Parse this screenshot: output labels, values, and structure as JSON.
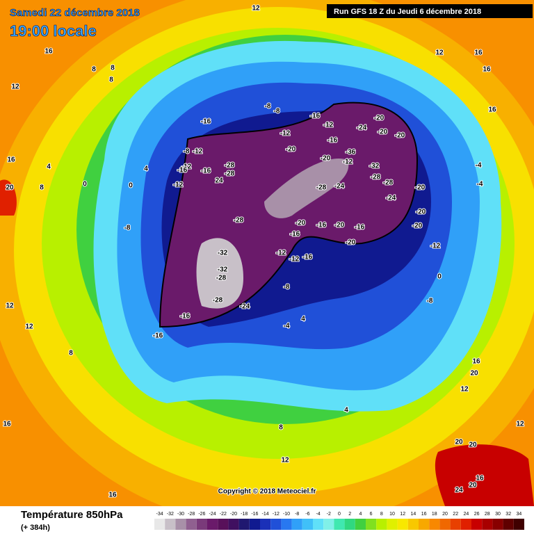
{
  "header": {
    "date": "Samedi 22 décembre 2018",
    "time": "19:00 locale",
    "run": "Run GFS 18 Z du Jeudi 6 décembre 2018"
  },
  "map": {
    "copyright": "Copyright © 2018 Meteociel.fr",
    "labels": [
      12,
      16,
      8,
      8,
      8,
      12,
      16,
      20,
      4,
      8,
      0,
      0,
      4,
      -8,
      -12,
      -16,
      -12,
      -16,
      -16,
      -28,
      -28,
      24,
      -12,
      -8,
      -8,
      -16,
      -12,
      -12,
      -20,
      -16,
      -36,
      -20,
      -12,
      -32,
      -20,
      -24,
      -20,
      -20,
      -28,
      -28,
      -24,
      -28,
      -24,
      -20,
      -20,
      -20,
      -28,
      -20,
      -16,
      -20,
      -16,
      -20,
      -16,
      -12,
      -12,
      -16,
      -32,
      -32,
      -28,
      -24,
      -28,
      -16,
      -16,
      -8,
      -8,
      -4,
      4,
      -12,
      -8,
      -4,
      -4,
      0,
      8,
      12,
      12,
      16,
      16,
      12,
      8,
      4,
      20,
      20,
      24,
      20,
      16,
      12,
      16,
      20,
      16,
      16,
      16,
      12,
      12
    ]
  },
  "legend": {
    "title": "Température 850hPa",
    "lead": "(+ 384h)",
    "scale": [
      {
        "value": -34,
        "color": "#e8e8e8"
      },
      {
        "value": -32,
        "color": "#c8c0c8"
      },
      {
        "value": -30,
        "color": "#a890a8"
      },
      {
        "value": -28,
        "color": "#906090"
      },
      {
        "value": -26,
        "color": "#7a3a7a"
      },
      {
        "value": -24,
        "color": "#6a1a6a"
      },
      {
        "value": -22,
        "color": "#58105a"
      },
      {
        "value": -20,
        "color": "#401060"
      },
      {
        "value": -18,
        "color": "#201870"
      },
      {
        "value": -16,
        "color": "#101a90"
      },
      {
        "value": -14,
        "color": "#1a30b8"
      },
      {
        "value": -12,
        "color": "#2050d8"
      },
      {
        "value": -10,
        "color": "#2878f0"
      },
      {
        "value": -8,
        "color": "#30a0f8"
      },
      {
        "value": -6,
        "color": "#40c0f8"
      },
      {
        "value": -4,
        "color": "#60e0f8"
      },
      {
        "value": -2,
        "color": "#80f0e8"
      },
      {
        "value": 0,
        "color": "#40e8b0"
      },
      {
        "value": 2,
        "color": "#30d880"
      },
      {
        "value": 4,
        "color": "#40d040"
      },
      {
        "value": 6,
        "color": "#80e020"
      },
      {
        "value": 8,
        "color": "#b8f000"
      },
      {
        "value": 10,
        "color": "#e0f000"
      },
      {
        "value": 12,
        "color": "#f8e800"
      },
      {
        "value": 14,
        "color": "#f8c800"
      },
      {
        "value": 16,
        "color": "#f8a800"
      },
      {
        "value": 18,
        "color": "#f88800"
      },
      {
        "value": 20,
        "color": "#f06800"
      },
      {
        "value": 22,
        "color": "#e84000"
      },
      {
        "value": 24,
        "color": "#e02000"
      },
      {
        "value": 26,
        "color": "#c80000"
      },
      {
        "value": 28,
        "color": "#a80000"
      },
      {
        "value": 30,
        "color": "#880000"
      },
      {
        "value": 32,
        "color": "#600000"
      },
      {
        "value": 34,
        "color": "#400000"
      }
    ]
  }
}
